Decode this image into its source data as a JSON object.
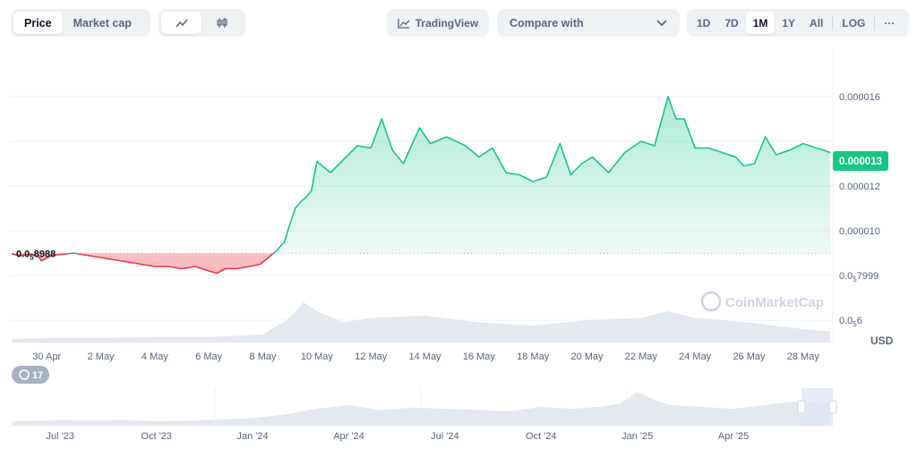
{
  "toolbar": {
    "metric_tabs": [
      "Price",
      "Market cap"
    ],
    "active_metric": "Price",
    "chart_types": [
      "line-chart-icon",
      "candlestick-icon"
    ],
    "tradingview_label": "TradingView",
    "compare_placeholder": "Compare with",
    "ranges": [
      "1D",
      "7D",
      "1M",
      "1Y",
      "All"
    ],
    "active_range": "1M",
    "log_label": "LOG",
    "more_label": "···"
  },
  "colors": {
    "up": "#16c784",
    "down": "#ea3943",
    "grid": "#eff2f5",
    "volume": "#e3e7ee"
  },
  "chart_data": {
    "type": "area",
    "currency_label": "USD",
    "watermark": "CoinMarketCap",
    "baseline": {
      "value": 8.988e-06,
      "label_main": "0.0",
      "label_sub": "5",
      "label_rest": "8988"
    },
    "current_price": {
      "value": 1.3e-05,
      "label": "0.000013"
    },
    "y_ticks": [
      {
        "value": 1.6e-05,
        "main": "0.000016",
        "sub": "",
        "rest": ""
      },
      {
        "value": 1.4e-05,
        "main": "",
        "sub": "",
        "rest": ""
      },
      {
        "value": 1.2e-05,
        "main": "0.000012",
        "sub": "",
        "rest": ""
      },
      {
        "value": 1e-05,
        "main": "0.000010",
        "sub": "",
        "rest": ""
      },
      {
        "value": 7.999e-06,
        "main": "0.0",
        "sub": "5",
        "rest": "7999"
      },
      {
        "value": 6e-06,
        "main": "0.0",
        "sub": "5",
        "rest": "6"
      }
    ],
    "x_ticks": [
      "30 Apr",
      "2 May",
      "4 May",
      "6 May",
      "8 May",
      "10 May",
      "12 May",
      "14 May",
      "16 May",
      "18 May",
      "20 May",
      "22 May",
      "24 May",
      "26 May",
      "28 May"
    ],
    "x_tick_days": [
      0,
      2,
      4,
      6,
      8,
      10,
      12,
      14,
      16,
      18,
      20,
      22,
      24,
      26,
      28
    ],
    "ylim": [
      5e-06,
      1.8e-05
    ],
    "price_series": {
      "x_days": [
        -1.3,
        -1.0,
        -0.6,
        -0.4,
        -0.3,
        -0.2,
        0.2,
        0.6,
        1.0,
        1.5,
        2.0,
        2.5,
        3.0,
        3.5,
        4.0,
        4.5,
        5.0,
        5.5,
        6.0,
        6.3,
        6.6,
        7.0,
        7.5,
        7.9,
        8.2,
        8.5,
        8.8,
        9.0,
        9.2,
        9.4,
        9.6,
        9.8,
        10.0,
        10.5,
        11.0,
        11.5,
        12.0,
        12.4,
        12.8,
        13.2,
        13.8,
        14.2,
        14.8,
        15.5,
        16.0,
        16.5,
        17.0,
        17.5,
        18.0,
        18.5,
        19.0,
        19.4,
        19.8,
        20.2,
        20.8,
        21.4,
        22.0,
        22.5,
        23.0,
        23.3,
        23.6,
        24.0,
        24.5,
        25.0,
        25.5,
        25.8,
        26.2,
        26.6,
        27.0,
        27.5,
        28.0,
        28.5,
        29.0
      ],
      "values": [
        8.97e-06,
        8.89e-06,
        8.95e-06,
        8.88e-06,
        8.83e-06,
        8.66e-06,
        8.9e-06,
        8.95e-06,
        9e-06,
        8.9e-06,
        8.8e-06,
        8.7e-06,
        8.6e-06,
        8.5e-06,
        8.4e-06,
        8.4e-06,
        8.3e-06,
        8.4e-06,
        8.2e-06,
        8.1e-06,
        8.3e-06,
        8.3e-06,
        8.4e-06,
        8.5e-06,
        8.8e-06,
        9.1e-06,
        9.5e-06,
        1.03e-05,
        1.1e-05,
        1.13e-05,
        1.15e-05,
        1.18e-05,
        1.31e-05,
        1.26e-05,
        1.32e-05,
        1.38e-05,
        1.37e-05,
        1.5e-05,
        1.36e-05,
        1.3e-05,
        1.46e-05,
        1.39e-05,
        1.42e-05,
        1.38e-05,
        1.33e-05,
        1.37e-05,
        1.26e-05,
        1.25e-05,
        1.22e-05,
        1.24e-05,
        1.39e-05,
        1.25e-05,
        1.3e-05,
        1.33e-05,
        1.26e-05,
        1.35e-05,
        1.4e-05,
        1.38e-05,
        1.6e-05,
        1.5e-05,
        1.5e-05,
        1.37e-05,
        1.37e-05,
        1.35e-05,
        1.33e-05,
        1.29e-05,
        1.3e-05,
        1.42e-05,
        1.34e-05,
        1.36e-05,
        1.39e-05,
        1.37e-05,
        1.35e-05
      ]
    },
    "volume_series": {
      "x_days": [
        -1.3,
        0,
        2,
        4,
        6,
        8,
        9,
        9.5,
        10,
        11,
        12,
        14,
        16,
        18,
        20,
        22,
        23,
        24,
        26,
        28,
        29
      ],
      "values": [
        0.08,
        0.1,
        0.1,
        0.12,
        0.12,
        0.18,
        0.55,
        0.9,
        0.7,
        0.45,
        0.55,
        0.6,
        0.45,
        0.38,
        0.5,
        0.55,
        0.7,
        0.55,
        0.45,
        0.3,
        0.25
      ]
    },
    "overview": {
      "x_ticks": [
        "Jul '23",
        "Oct '23",
        "Jan '24",
        "Apr '24",
        "Jul '24",
        "Oct '24",
        "Jan '25",
        "Apr '25"
      ],
      "x_tick_months": [
        0,
        3,
        6,
        9,
        12,
        15,
        18,
        21
      ],
      "x_months": [
        -1.5,
        0,
        1,
        2,
        3,
        4,
        5,
        6,
        7,
        8,
        8.5,
        9,
        9.5,
        10,
        11,
        12,
        13,
        14,
        15,
        16,
        17,
        17.5,
        18,
        18.5,
        19,
        20,
        21,
        22,
        23,
        24
      ],
      "values": [
        0.12,
        0.15,
        0.14,
        0.15,
        0.12,
        0.13,
        0.16,
        0.2,
        0.3,
        0.45,
        0.5,
        0.55,
        0.48,
        0.42,
        0.48,
        0.45,
        0.42,
        0.38,
        0.5,
        0.45,
        0.52,
        0.6,
        0.9,
        0.7,
        0.55,
        0.5,
        0.45,
        0.55,
        0.65,
        0.6
      ],
      "events_label": "17"
    }
  }
}
